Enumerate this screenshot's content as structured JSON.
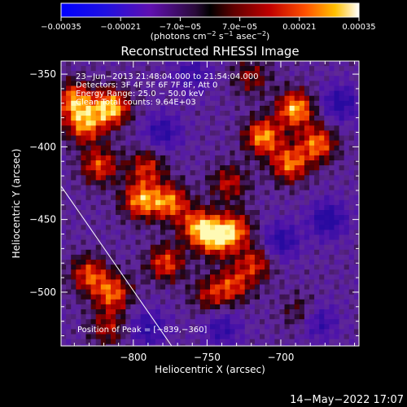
{
  "chart_data": {
    "type": "heatmap",
    "title": "Reconstructed RHESSI Image",
    "xlabel": "Heliocentric X (arcsec)",
    "ylabel": "Heliocentric Y (arcsec)",
    "xlim": [
      -849,
      -647
    ],
    "ylim": [
      -537,
      -341
    ],
    "x_ticks": [
      -800,
      -750,
      -700
    ],
    "x_tick_labels": [
      "−800",
      "−750",
      "−700"
    ],
    "y_ticks": [
      -350,
      -400,
      -450,
      -500
    ],
    "y_tick_labels": [
      "−350",
      "−400",
      "−450",
      "−500"
    ],
    "colorbar": {
      "min": -0.00035,
      "max": 0.00035,
      "tick_labels": [
        "−0.00035",
        "−0.00021",
        "−7.0e−05",
        "7.0e−05",
        "0.00021",
        "0.00035"
      ],
      "unit_prefix": "(photons cm",
      "unit_exp1": "−2",
      "unit_mid": " s",
      "unit_exp2": "−1",
      "unit_mid2": " asec",
      "unit_exp3": "−2",
      "unit_suffix": ")"
    },
    "annotations": [
      "23−Jun−2013 21:48:04.000 to 21:54:04.000",
      "Detectors: 3F 4F 5F 6F 7F 8F, Att 0",
      "Energy Range: 25.0 − 50.0 keV",
      "Clean    Total counts: 9.64E+03"
    ],
    "peak_label": "Position of Peak = [−839,−360]",
    "limb_line": [
      [
        -849,
        -427
      ],
      [
        -774,
        -537
      ]
    ],
    "bright_sources": [
      {
        "x": -815,
        "y": -373,
        "level": 1.0
      },
      {
        "x": -690,
        "y": -374,
        "level": 0.95
      },
      {
        "x": -712,
        "y": -393,
        "level": 0.9
      },
      {
        "x": -675,
        "y": -398,
        "level": 0.8
      },
      {
        "x": -694,
        "y": -412,
        "level": 0.8
      },
      {
        "x": -795,
        "y": -437,
        "level": 0.85
      },
      {
        "x": -775,
        "y": -438,
        "level": 0.8
      },
      {
        "x": -756,
        "y": -455,
        "level": 0.8
      },
      {
        "x": -744,
        "y": -463,
        "level": 0.85
      },
      {
        "x": -731,
        "y": -457,
        "level": 0.7
      },
      {
        "x": -778,
        "y": -480,
        "level": 0.7
      },
      {
        "x": -732,
        "y": -495,
        "level": 0.6
      },
      {
        "x": -748,
        "y": -502,
        "level": 0.5
      },
      {
        "x": -840,
        "y": -368,
        "level": 0.85
      },
      {
        "x": -833,
        "y": -385,
        "level": 0.8
      },
      {
        "x": -823,
        "y": -413,
        "level": 0.7
      },
      {
        "x": -814,
        "y": -501,
        "level": 0.75
      },
      {
        "x": -830,
        "y": -488,
        "level": 0.7
      },
      {
        "x": -817,
        "y": -525,
        "level": 0.5
      },
      {
        "x": -717,
        "y": -480,
        "level": 0.6
      },
      {
        "x": -686,
        "y": -514,
        "level": 0.4
      },
      {
        "x": -791,
        "y": -414,
        "level": 0.6
      },
      {
        "x": -735,
        "y": -425,
        "level": 0.55
      },
      {
        "x": -720,
        "y": -352,
        "level": 0.45
      }
    ],
    "dark_sources": [
      {
        "x": -668,
        "y": -450,
        "level": -0.6
      },
      {
        "x": -700,
        "y": -465,
        "level": -0.55
      },
      {
        "x": -780,
        "y": -390,
        "level": -0.5
      },
      {
        "x": -660,
        "y": -370,
        "level": -0.55
      },
      {
        "x": -790,
        "y": -525,
        "level": -0.5
      },
      {
        "x": -760,
        "y": -350,
        "level": -0.4
      },
      {
        "x": -675,
        "y": -520,
        "level": -0.5
      },
      {
        "x": -740,
        "y": -525,
        "level": -0.45
      }
    ]
  },
  "footer": {
    "timestamp": "14−May−2022 17:07"
  }
}
